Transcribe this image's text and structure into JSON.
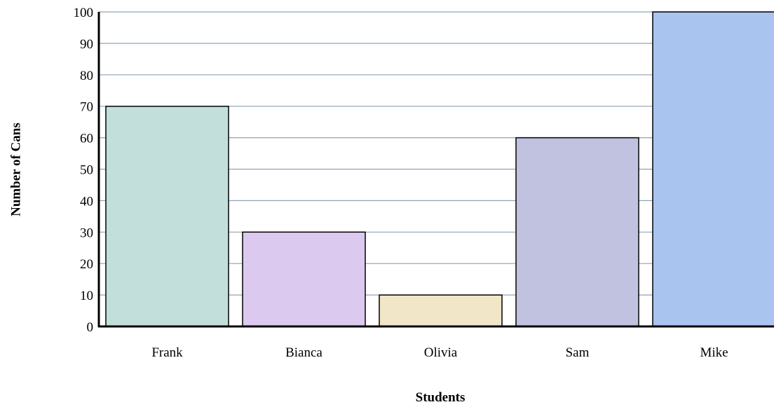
{
  "chart_data": {
    "type": "bar",
    "title": "",
    "xlabel": "Students",
    "ylabel": "Number of Cans",
    "categories": [
      "Frank",
      "Bianca",
      "Olivia",
      "Sam",
      "Mike"
    ],
    "values": [
      70,
      30,
      10,
      60,
      100
    ],
    "ylim": [
      0,
      100
    ],
    "yticks": [
      0,
      10,
      20,
      30,
      40,
      50,
      60,
      70,
      80,
      90,
      100
    ],
    "grid": true,
    "legend": "none",
    "colors": {
      "bars": [
        "#c3dfdb",
        "#dcc9f0",
        "#f2e6c8",
        "#c1c2df",
        "#a9c5ef"
      ],
      "gridline": "#8fa3b8",
      "axis": "#000000",
      "bar_border": "#000000"
    }
  }
}
